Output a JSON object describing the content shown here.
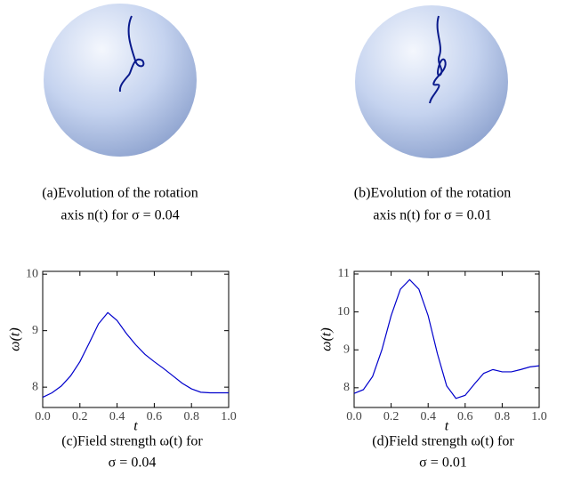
{
  "spheres": [
    {
      "caption": [
        "(a)Evolution of the rotation",
        "axis n(t) for σ = 0.04"
      ]
    },
    {
      "caption": [
        "(b)Evolution of the rotation",
        "axis n(t) for σ = 0.01"
      ]
    }
  ],
  "chart_data": [
    {
      "type": "line",
      "caption": [
        "(c)Field strength ω(t) for",
        "σ = 0.04"
      ],
      "xlabel": "t",
      "ylabel": "ω(t)",
      "x": [
        0,
        0.05,
        0.1,
        0.15,
        0.2,
        0.25,
        0.3,
        0.35,
        0.4,
        0.45,
        0.5,
        0.55,
        0.6,
        0.65,
        0.7,
        0.75,
        0.8,
        0.85,
        0.9,
        0.95,
        1
      ],
      "series": [
        {
          "color": "#0000cc",
          "values": [
            7.82,
            7.9,
            8.02,
            8.2,
            8.45,
            8.78,
            9.12,
            9.32,
            9.18,
            8.95,
            8.75,
            8.58,
            8.45,
            8.33,
            8.2,
            8.07,
            7.97,
            7.91,
            7.9,
            7.9,
            7.9
          ]
        }
      ],
      "xlim": [
        0,
        1
      ],
      "ylim": [
        7.64,
        10.05
      ],
      "xticks": [
        {
          "value": 0,
          "label": "0.0"
        },
        {
          "value": 0.2,
          "label": "0.2"
        },
        {
          "value": 0.4,
          "label": "0.4"
        },
        {
          "value": 0.6,
          "label": "0.6"
        },
        {
          "value": 0.8,
          "label": "0.8"
        },
        {
          "value": 1,
          "label": "1.0"
        }
      ],
      "yticks": [
        8,
        9,
        10
      ]
    },
    {
      "type": "line",
      "caption": [
        "(d)Field strength ω(t) for",
        "σ = 0.01"
      ],
      "xlabel": "t",
      "ylabel": "ω(t)",
      "x": [
        0,
        0.05,
        0.1,
        0.15,
        0.2,
        0.25,
        0.3,
        0.35,
        0.4,
        0.45,
        0.5,
        0.55,
        0.6,
        0.65,
        0.7,
        0.75,
        0.8,
        0.85,
        0.9,
        0.95,
        1
      ],
      "series": [
        {
          "color": "#0000cc",
          "values": [
            7.85,
            7.95,
            8.3,
            9.0,
            9.9,
            10.6,
            10.85,
            10.6,
            9.9,
            8.9,
            8.05,
            7.72,
            7.8,
            8.1,
            8.38,
            8.48,
            8.42,
            8.42,
            8.48,
            8.55,
            8.58
          ]
        }
      ],
      "xlim": [
        0,
        1
      ],
      "ylim": [
        7.48,
        11.07
      ],
      "xticks": [
        {
          "value": 0,
          "label": "0.0"
        },
        {
          "value": 0.2,
          "label": "0.2"
        },
        {
          "value": 0.4,
          "label": "0.4"
        },
        {
          "value": 0.6,
          "label": "0.6"
        },
        {
          "value": 0.8,
          "label": "0.8"
        },
        {
          "value": 1,
          "label": "1.0"
        }
      ],
      "yticks": [
        8,
        9,
        10,
        11
      ]
    }
  ]
}
